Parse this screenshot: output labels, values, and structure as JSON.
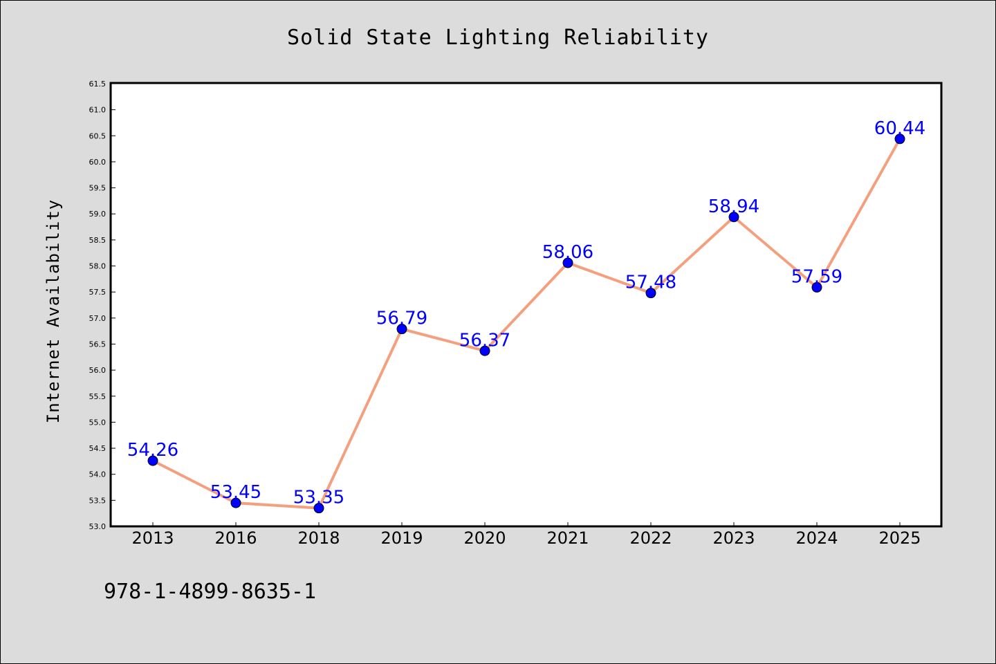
{
  "chart_data": {
    "type": "line",
    "title": "Solid State Lighting Reliability",
    "ylabel": "Internet Availability",
    "xlabel": "",
    "categories": [
      "2013",
      "2016",
      "2018",
      "2019",
      "2020",
      "2021",
      "2022",
      "2023",
      "2024",
      "2025"
    ],
    "series": [
      {
        "values": [
          54.26,
          53.45,
          53.35,
          56.79,
          56.37,
          58.06,
          57.48,
          58.94,
          57.59,
          60.44
        ]
      }
    ],
    "data_labels": [
      "54.26",
      "53.45",
      "53.35",
      "56.79",
      "56.37",
      "58.06",
      "57.48",
      "58.94",
      "57.59",
      "60.44"
    ],
    "ylim": [
      53.0,
      61.5
    ],
    "yticks": [
      "53.0",
      "53.5",
      "54.0",
      "54.5",
      "55.0",
      "55.5",
      "56.0",
      "56.5",
      "57.0",
      "57.5",
      "58.0",
      "58.5",
      "59.0",
      "59.5",
      "60.0",
      "60.5",
      "61.0",
      "61.5"
    ],
    "grid": false,
    "legend": "none",
    "colors": {
      "line": "#f4a07f",
      "marker": "#0000ff",
      "data_label": "#0000ff",
      "background": "#dcdcdc",
      "plot_area": "#ffffff"
    }
  },
  "annotation": {
    "isbn": "978-1-4899-8635-1"
  }
}
